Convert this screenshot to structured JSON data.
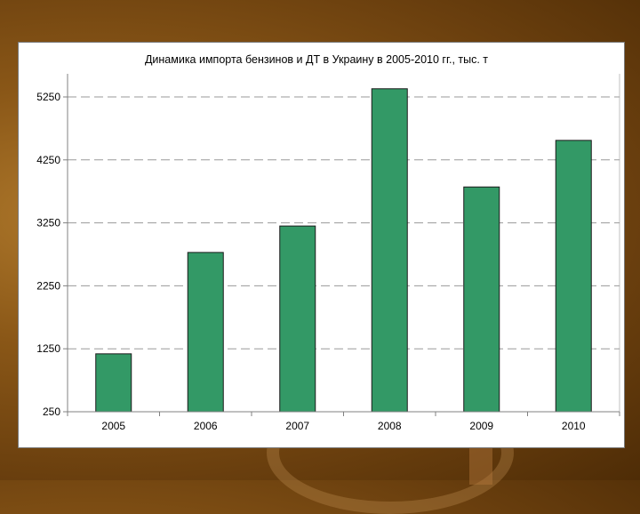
{
  "chart_data": {
    "type": "bar",
    "title": "Динамика импорта бензинов и ДТ в Украину в 2005-2010 гг., тыс. т",
    "categories": [
      "2005",
      "2006",
      "2007",
      "2008",
      "2009",
      "2010"
    ],
    "values": [
      1170,
      2780,
      3200,
      5380,
      3820,
      4560
    ],
    "yticks": [
      "5250",
      "4250",
      "3250",
      "2250",
      "1250",
      "250"
    ],
    "ylim": [
      250,
      5700
    ],
    "grid": "dashed horizontal",
    "legend": "none",
    "bar_color": "#339966"
  }
}
